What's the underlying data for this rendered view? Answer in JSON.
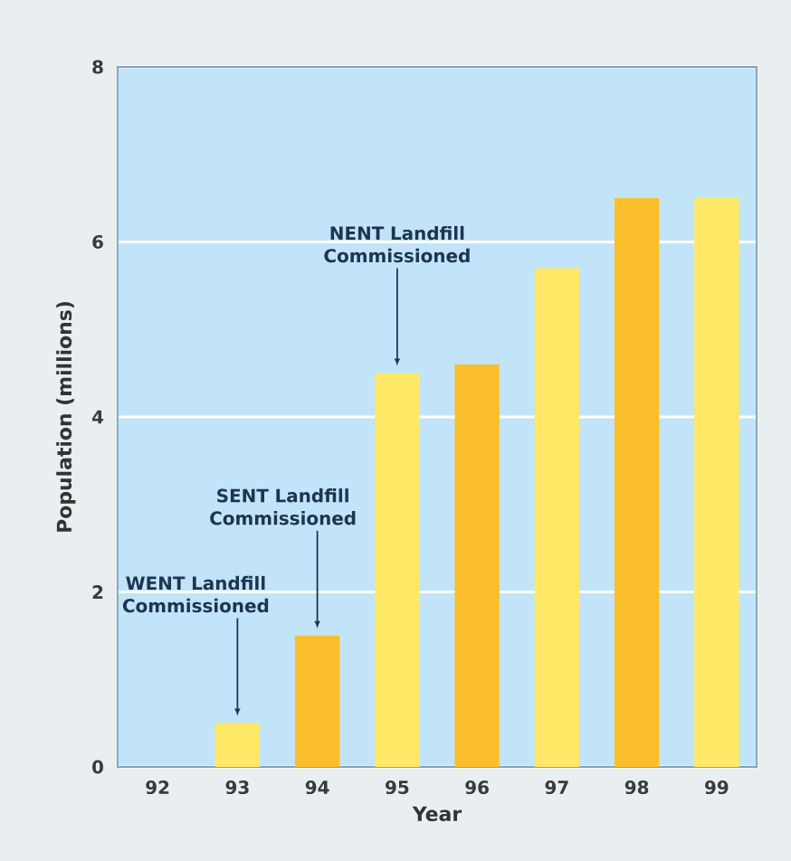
{
  "chart_data": {
    "type": "bar",
    "xlabel": "Year",
    "ylabel": "Population (millions)",
    "categories": [
      "92",
      "93",
      "94",
      "95",
      "96",
      "97",
      "98",
      "99"
    ],
    "values": [
      null,
      0.5,
      1.5,
      4.5,
      4.6,
      5.7,
      6.5,
      6.5
    ],
    "colors": [
      "#ffe866",
      "#ffe866",
      "#fbbf2d",
      "#ffe866",
      "#fbbf2d",
      "#ffe866",
      "#fbbf2d",
      "#ffe866"
    ],
    "ylim": [
      0,
      8
    ],
    "yticks": [
      0,
      2,
      4,
      6,
      8
    ],
    "grid": "y",
    "annotations": [
      {
        "text": "WENT Landfill Commissioned",
        "x": "93",
        "y": 0.5
      },
      {
        "text": "SENT Landfill Commissioned",
        "x": "94",
        "y": 1.5
      },
      {
        "text": "NENT Landfill Commissioned",
        "x": "95",
        "y": 4.5
      }
    ]
  }
}
